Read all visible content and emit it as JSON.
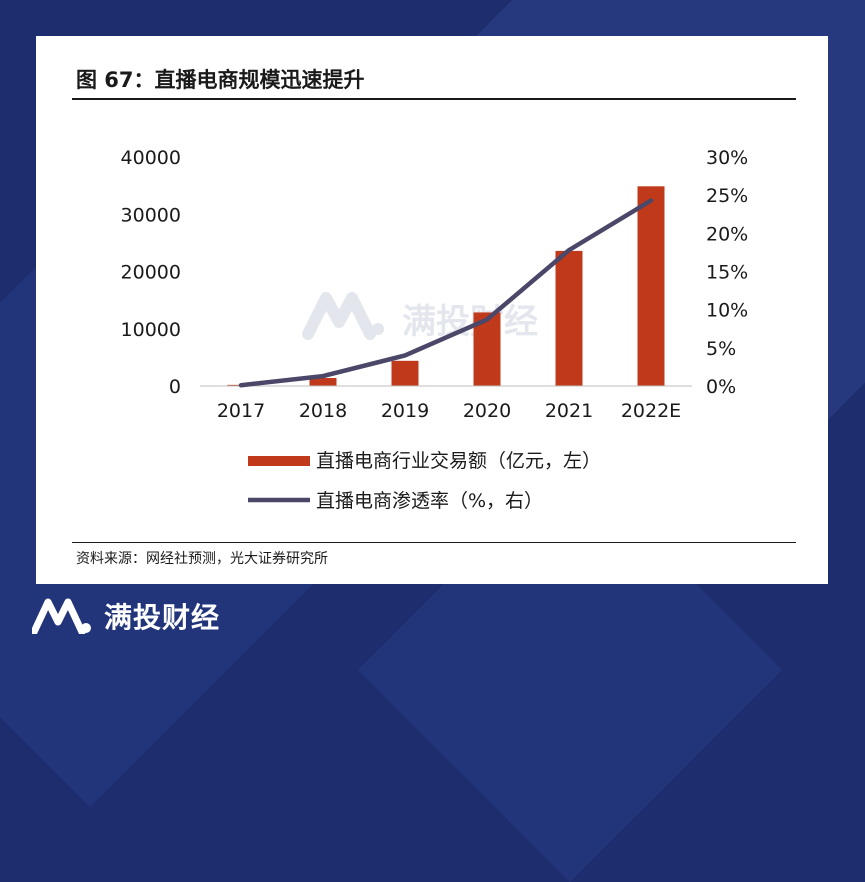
{
  "figure": {
    "title": "图 67：直播电商规模迅速提升",
    "source": "资料来源：网经社预测，光大证券研究所"
  },
  "watermark": {
    "text": "满投财经"
  },
  "footer": {
    "brand": "满投财经"
  },
  "colors": {
    "bar": "#c0391b",
    "line": "#4a4768",
    "background": "#1d2d6e"
  },
  "chart_data": {
    "type": "bar",
    "categories": [
      "2017",
      "2018",
      "2019",
      "2020",
      "2021",
      "2022E"
    ],
    "series": [
      {
        "name": "直播电商行业交易额（亿元，左）",
        "type": "bar",
        "axis": "left",
        "values": [
          200,
          1400,
          4400,
          12850,
          23600,
          34880
        ]
      },
      {
        "name": "直播电商渗透率（%，右）",
        "type": "line",
        "axis": "right",
        "values": [
          0.1,
          1.3,
          4.0,
          8.7,
          17.8,
          24.3
        ]
      }
    ],
    "y_left": {
      "ticks": [
        "0",
        "10000",
        "20000",
        "30000",
        "40000"
      ],
      "range": [
        0,
        40000
      ]
    },
    "y_right": {
      "ticks": [
        "0%",
        "5%",
        "10%",
        "15%",
        "20%",
        "25%",
        "30%"
      ],
      "range": [
        0,
        30
      ]
    },
    "legend": {
      "placement": "bottom"
    },
    "grid": false
  }
}
